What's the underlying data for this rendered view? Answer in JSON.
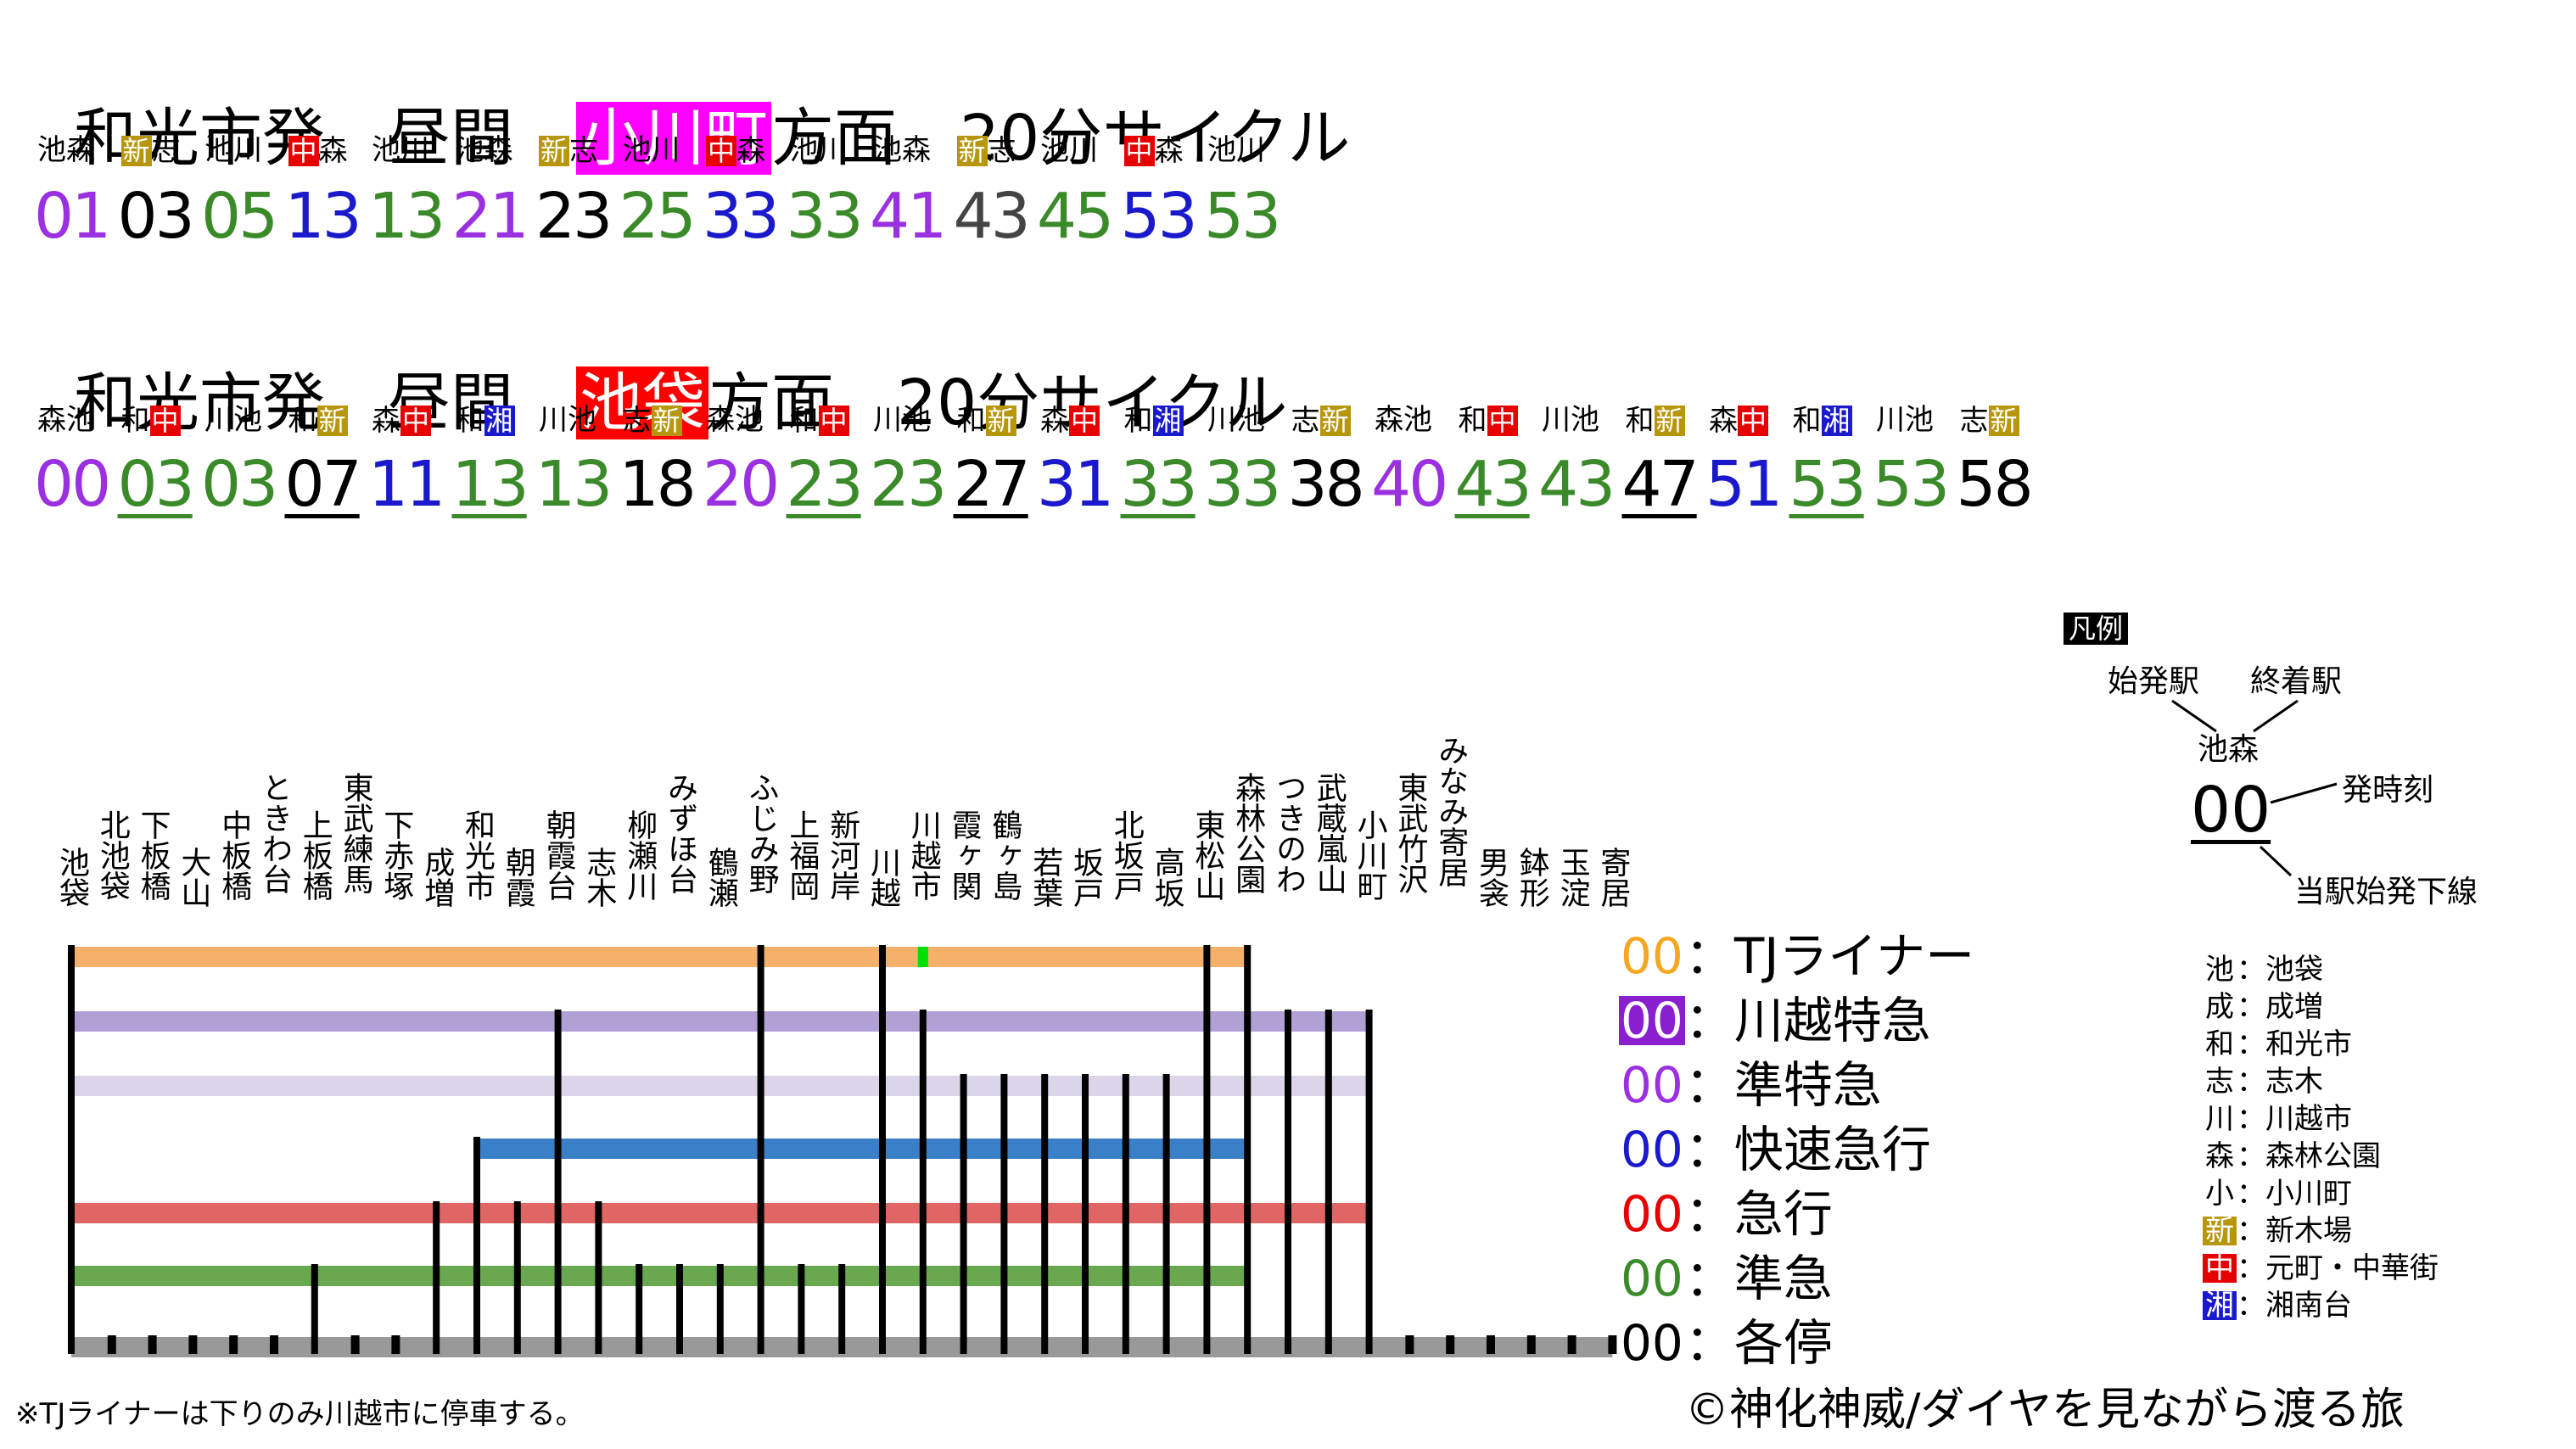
{
  "section1": {
    "title": {
      "pre": "和光市発　昼間　",
      "hl": "小川町",
      "post": "方面　20分サイクル",
      "hl_color": "#ff00ff"
    },
    "destinations": [
      {
        "text": "池森"
      },
      {
        "badge": "新",
        "badge_color": "#b8960c",
        "text": "志"
      },
      {
        "text": "池川"
      },
      {
        "badge": "中",
        "badge_color": "#e60000",
        "text": "森"
      },
      {
        "text": "池川"
      },
      {
        "text": "池森"
      },
      {
        "badge": "新",
        "badge_color": "#b8960c",
        "text": "志"
      },
      {
        "text": "池川"
      },
      {
        "badge": "中",
        "badge_color": "#e60000",
        "text": "森"
      },
      {
        "text": "池川"
      },
      {
        "text": "池森"
      },
      {
        "badge": "新",
        "badge_color": "#b8960c",
        "text": "志"
      },
      {
        "text": "池川"
      },
      {
        "badge": "中",
        "badge_color": "#e60000",
        "text": "森"
      },
      {
        "text": "池川"
      }
    ],
    "times": [
      {
        "t": "01",
        "c": "#9b30e0"
      },
      {
        "t": "03",
        "c": "#000000"
      },
      {
        "t": "05",
        "c": "#3a8a2a"
      },
      {
        "t": "13",
        "c": "#1a1acc"
      },
      {
        "t": "13",
        "c": "#3a8a2a"
      },
      {
        "t": "21",
        "c": "#9b30e0"
      },
      {
        "t": "23",
        "c": "#000000"
      },
      {
        "t": "25",
        "c": "#3a8a2a"
      },
      {
        "t": "33",
        "c": "#1a1acc"
      },
      {
        "t": "33",
        "c": "#3a8a2a"
      },
      {
        "t": "41",
        "c": "#9b30e0"
      },
      {
        "t": "43",
        "c": "#444444"
      },
      {
        "t": "45",
        "c": "#3a8a2a"
      },
      {
        "t": "53",
        "c": "#1a1acc"
      },
      {
        "t": "53",
        "c": "#3a8a2a"
      }
    ]
  },
  "section2": {
    "title": {
      "pre": "和光市発　昼間　",
      "hl": "池袋",
      "post": "方面　20分サイクル",
      "hl_color": "#ff0000"
    },
    "destinations": [
      {
        "text": "森池"
      },
      {
        "text": "和",
        "badge": "中",
        "badge_color": "#e60000"
      },
      {
        "text": "川池"
      },
      {
        "text": "和",
        "badge": "新",
        "badge_color": "#b8960c"
      },
      {
        "text": "森",
        "badge": "中",
        "badge_color": "#e60000"
      },
      {
        "text": "和",
        "badge": "湘",
        "badge_color": "#1a1acc"
      },
      {
        "text": "川池"
      },
      {
        "text": "志",
        "badge": "新",
        "badge_color": "#b8960c"
      },
      {
        "text": "森池"
      },
      {
        "text": "和",
        "badge": "中",
        "badge_color": "#e60000"
      },
      {
        "text": "川池"
      },
      {
        "text": "和",
        "badge": "新",
        "badge_color": "#b8960c"
      },
      {
        "text": "森",
        "badge": "中",
        "badge_color": "#e60000"
      },
      {
        "text": "和",
        "badge": "湘",
        "badge_color": "#1a1acc"
      },
      {
        "text": "川池"
      },
      {
        "text": "志",
        "badge": "新",
        "badge_color": "#b8960c"
      },
      {
        "text": "森池"
      },
      {
        "text": "和",
        "badge": "中",
        "badge_color": "#e60000"
      },
      {
        "text": "川池"
      },
      {
        "text": "和",
        "badge": "新",
        "badge_color": "#b8960c"
      },
      {
        "text": "森",
        "badge": "中",
        "badge_color": "#e60000"
      },
      {
        "text": "和",
        "badge": "湘",
        "badge_color": "#1a1acc"
      },
      {
        "text": "川池"
      },
      {
        "text": "志",
        "badge": "新",
        "badge_color": "#b8960c"
      }
    ],
    "times": [
      {
        "t": "00",
        "c": "#9b30e0"
      },
      {
        "t": "03",
        "c": "#3a8a2a",
        "u": true
      },
      {
        "t": "03",
        "c": "#3a8a2a"
      },
      {
        "t": "07",
        "c": "#000000",
        "u": true
      },
      {
        "t": "11",
        "c": "#1a1acc"
      },
      {
        "t": "13",
        "c": "#3a8a2a",
        "u": true
      },
      {
        "t": "13",
        "c": "#3a8a2a"
      },
      {
        "t": "18",
        "c": "#000000"
      },
      {
        "t": "20",
        "c": "#9b30e0"
      },
      {
        "t": "23",
        "c": "#3a8a2a",
        "u": true
      },
      {
        "t": "23",
        "c": "#3a8a2a"
      },
      {
        "t": "27",
        "c": "#000000",
        "u": true
      },
      {
        "t": "31",
        "c": "#1a1acc"
      },
      {
        "t": "33",
        "c": "#3a8a2a",
        "u": true
      },
      {
        "t": "33",
        "c": "#3a8a2a"
      },
      {
        "t": "38",
        "c": "#000000"
      },
      {
        "t": "40",
        "c": "#9b30e0"
      },
      {
        "t": "43",
        "c": "#3a8a2a",
        "u": true
      },
      {
        "t": "43",
        "c": "#3a8a2a"
      },
      {
        "t": "47",
        "c": "#000000",
        "u": true
      },
      {
        "t": "51",
        "c": "#1a1acc"
      },
      {
        "t": "53",
        "c": "#3a8a2a",
        "u": true
      },
      {
        "t": "53",
        "c": "#3a8a2a"
      },
      {
        "t": "58",
        "c": "#000000"
      }
    ]
  },
  "stations": [
    "池袋",
    "北池袋",
    "下板橋",
    "大山",
    "中板橋",
    "ときわ台",
    "上板橋",
    "東武練馬",
    "下赤塚",
    "成増",
    "和光市",
    "朝霞",
    "朝霞台",
    "志木",
    "柳瀬川",
    "みずほ台",
    "鶴瀬",
    "ふじみ野",
    "上福岡",
    "新河岸",
    "川越",
    "川越市",
    "霞ヶ関",
    "鶴ヶ島",
    "若葉",
    "坂戸",
    "北坂戸",
    "高坂",
    "東松山",
    "森林公園",
    "つきのわ",
    "武蔵嵐山",
    "小川町",
    "東武竹沢",
    "みなみ寄居",
    "男衾",
    "鉢形",
    "玉淀",
    "寄居"
  ],
  "service_stops": [
    {
      "name": "TJライナー",
      "color": "#f5b06a",
      "from": 0,
      "to": 29,
      "stops": [
        0,
        17,
        20,
        28,
        29
      ],
      "marker": 21,
      "marker_color": "#00e000"
    },
    {
      "name": "川越特急",
      "color": "#b0a0d6",
      "from": 0,
      "to": 32,
      "stops": [
        0,
        12,
        17,
        20,
        21,
        28,
        29,
        30,
        31,
        32
      ]
    },
    {
      "name": "準特急",
      "color": "#dcd5ea",
      "from": 0,
      "to": 32,
      "stops": [
        0,
        12,
        17,
        20,
        21,
        22,
        23,
        24,
        25,
        26,
        27,
        28,
        29,
        30,
        31,
        32
      ]
    },
    {
      "name": "快速急行",
      "color": "#3a80c8",
      "from": 10,
      "to": 29,
      "stops": [
        10,
        12,
        17,
        20,
        21,
        22,
        23,
        24,
        25,
        26,
        27,
        28,
        29
      ]
    },
    {
      "name": "急行",
      "color": "#e06666",
      "from": 0,
      "to": 32,
      "stops": [
        0,
        9,
        10,
        11,
        12,
        13,
        17,
        20,
        21,
        22,
        23,
        24,
        25,
        26,
        27,
        28,
        29,
        30,
        31,
        32
      ]
    },
    {
      "name": "準急",
      "color": "#6aa84f",
      "from": 0,
      "to": 29,
      "stops": [
        0,
        6,
        9,
        10,
        11,
        12,
        13,
        14,
        15,
        16,
        17,
        18,
        19,
        20,
        21,
        22,
        23,
        24,
        25,
        26,
        27,
        28,
        29
      ]
    },
    {
      "name": "各停",
      "color": "#999999",
      "from": 0,
      "to": 38,
      "stops": [
        0,
        1,
        2,
        3,
        4,
        5,
        6,
        7,
        8,
        9,
        10,
        11,
        12,
        13,
        14,
        15,
        16,
        17,
        18,
        19,
        20,
        21,
        22,
        23,
        24,
        25,
        26,
        27,
        28,
        29,
        30,
        31,
        32,
        33,
        34,
        35,
        36,
        37,
        38
      ]
    }
  ],
  "legend": [
    {
      "num": "00",
      "label": "：TJライナー",
      "color": "#f5a623",
      "boxed": false
    },
    {
      "num": "00",
      "label": "：川越特急",
      "color": "#ffffff",
      "bg": "#8a1fd0",
      "boxed": true
    },
    {
      "num": "00",
      "label": "：準特急",
      "color": "#9b30e0",
      "boxed": false
    },
    {
      "num": "00",
      "label": "：快速急行",
      "color": "#1a1acc",
      "boxed": false
    },
    {
      "num": "00",
      "label": "：急行",
      "color": "#e60000",
      "boxed": false
    },
    {
      "num": "00",
      "label": "：準急",
      "color": "#3a8a2a",
      "boxed": false
    },
    {
      "num": "00",
      "label": "：各停",
      "color": "#000000",
      "boxed": false
    }
  ],
  "hanrei": {
    "tag": "凡例",
    "origin": "始発駅",
    "terminal": "終着駅",
    "sample_dest": "池森",
    "sample_time": "00",
    "dep_time": "発時刻",
    "local_origin": "当駅始発下線"
  },
  "abbreviations": [
    {
      "key": "池",
      "value": "：池袋"
    },
    {
      "key": "成",
      "value": "：成増"
    },
    {
      "key": "和",
      "value": "：和光市"
    },
    {
      "key": "志",
      "value": "：志木"
    },
    {
      "key": "川",
      "value": "：川越市"
    },
    {
      "key": "森",
      "value": "：森林公園"
    },
    {
      "key": "小",
      "value": "：小川町"
    },
    {
      "key": "新",
      "value": "：新木場",
      "badge_color": "#b8960c"
    },
    {
      "key": "中",
      "value": "：元町・中華街",
      "badge_color": "#e60000"
    },
    {
      "key": "湘",
      "value": "：湘南台",
      "badge_color": "#1a1acc"
    }
  ],
  "footnote": "※TJライナーは下りのみ川越市に停車する。",
  "copyright": "©神化神威/ダイヤを見ながら渡る旅"
}
